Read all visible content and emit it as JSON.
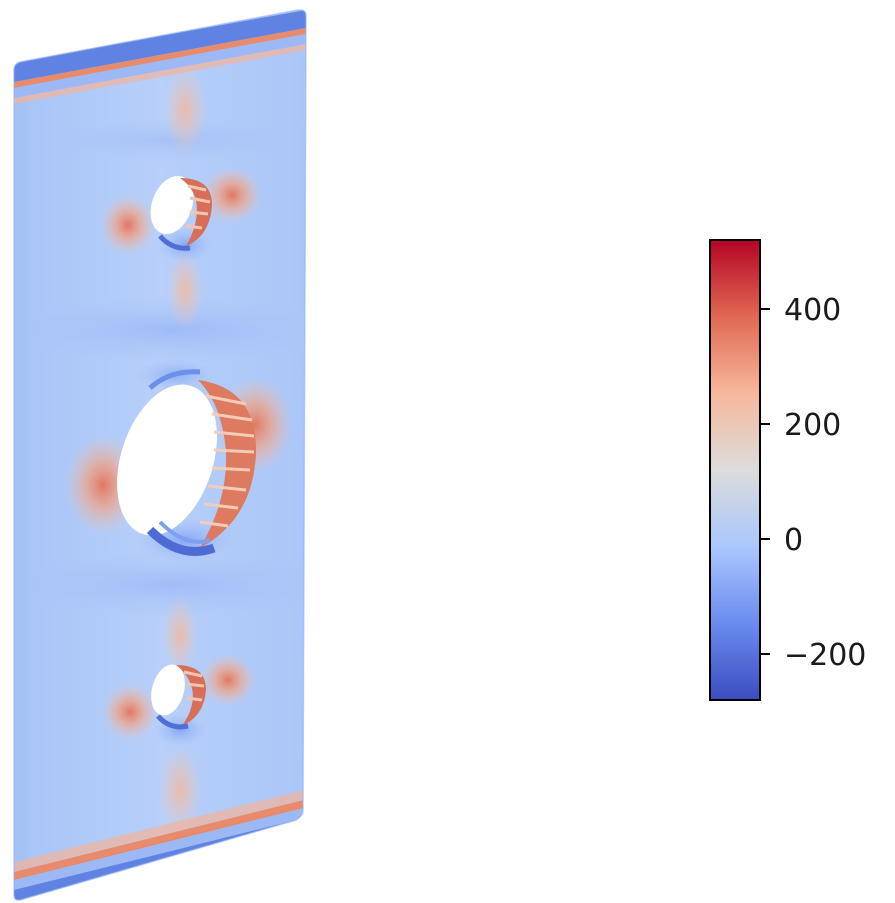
{
  "figure": {
    "subject": "stress-field-plate-with-three-holes",
    "colormap": "coolwarm",
    "colormap_stops": [
      "#3b4cc0",
      "#6a8bef",
      "#aac7fd",
      "#dddcdc",
      "#f6b89b",
      "#e16852",
      "#b40426"
    ],
    "colorbar": {
      "range": [
        -280,
        520
      ],
      "ticks": [
        {
          "value": -200,
          "label": "−200"
        },
        {
          "value": 0,
          "label": "0"
        },
        {
          "value": 200,
          "label": "200"
        },
        {
          "value": 400,
          "label": "400"
        }
      ]
    }
  }
}
